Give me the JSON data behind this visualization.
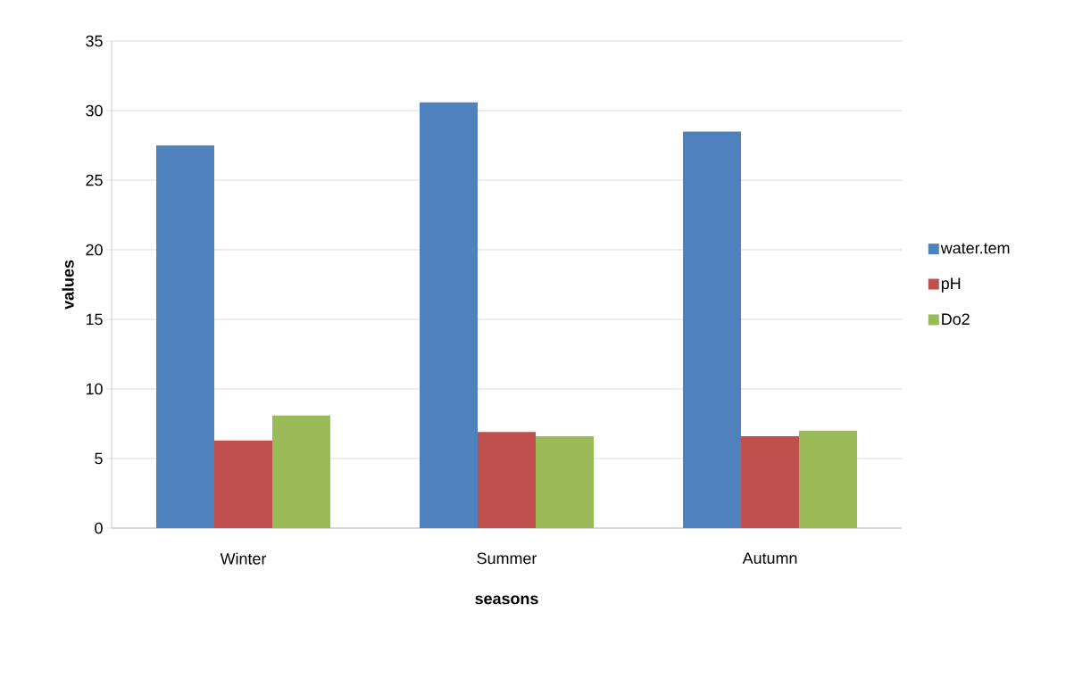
{
  "chart_data": {
    "type": "bar",
    "xlabel": "seasons",
    "ylabel": "values",
    "categories": [
      "Winter",
      "Summer",
      "Autumn"
    ],
    "series": [
      {
        "name": "water.tem",
        "color": "#4f81bd",
        "values": [
          27.5,
          30.6,
          28.5
        ]
      },
      {
        "name": "pH",
        "color": "#c0504d",
        "values": [
          6.3,
          6.9,
          6.6
        ]
      },
      {
        "name": "Do2",
        "color": "#9bbb59",
        "values": [
          8.1,
          6.6,
          7.0
        ]
      }
    ],
    "ylim": [
      0,
      35
    ],
    "yticks": [
      0,
      5,
      10,
      15,
      20,
      25,
      30,
      35
    ],
    "grid": "y",
    "legend": "right"
  }
}
